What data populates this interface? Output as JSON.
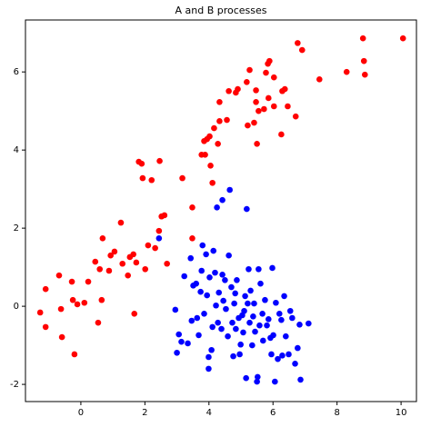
{
  "chart_data": {
    "type": "scatter",
    "title": "A and B processes",
    "xlim": [
      -1.73,
      10.48
    ],
    "ylim": [
      -2.44,
      7.33
    ],
    "xticks": [
      0,
      2,
      4,
      6,
      8,
      10
    ],
    "yticks": [
      -2,
      0,
      2,
      4,
      6
    ],
    "grid": false,
    "series": [
      {
        "color": "#ff0000",
        "x": [
          -1.27,
          -1.1,
          -1.1,
          -0.68,
          -0.59,
          -0.62,
          -0.25,
          -0.2,
          -0.28,
          -0.11,
          0.11,
          0.23,
          0.45,
          0.54,
          0.65,
          0.59,
          0.68,
          0.88,
          0.93,
          1.05,
          1.25,
          1.3,
          1.47,
          1.53,
          1.64,
          1.67,
          1.73,
          1.81,
          1.9,
          1.93,
          2.01,
          2.1,
          2.21,
          2.32,
          2.46,
          2.44,
          2.52,
          2.61,
          2.69,
          3.17,
          3.48,
          3.48,
          3.77,
          3.88,
          3.85,
          3.94,
          4.02,
          4.11,
          4.16,
          4.33,
          4.28,
          4.05,
          4.33,
          4.56,
          4.62,
          4.84,
          4.9,
          5.18,
          5.21,
          5.27,
          5.41,
          5.47,
          5.47,
          5.55,
          5.5,
          5.72,
          5.78,
          5.84,
          5.89,
          5.86,
          6.03,
          6.03,
          6.26,
          6.29,
          6.46,
          6.37,
          6.71,
          6.77,
          6.91,
          7.45,
          8.3,
          8.81,
          8.84,
          8.87,
          10.06
        ],
        "values": [
          -0.16,
          0.44,
          -0.53,
          0.79,
          -0.79,
          -0.07,
          0.16,
          -1.23,
          0.63,
          0.05,
          0.09,
          0.63,
          1.14,
          -0.42,
          0.16,
          0.95,
          1.74,
          0.91,
          1.3,
          1.4,
          2.14,
          1.09,
          0.79,
          1.26,
          1.33,
          -0.19,
          1.12,
          3.7,
          3.65,
          3.28,
          0.95,
          1.56,
          3.23,
          1.49,
          3.72,
          1.93,
          2.3,
          2.33,
          1.09,
          3.28,
          2.53,
          1.74,
          3.88,
          3.88,
          4.23,
          4.28,
          4.35,
          3.16,
          4.56,
          4.74,
          4.16,
          3.6,
          5.23,
          4.77,
          5.51,
          5.47,
          5.56,
          5.74,
          4.63,
          6.05,
          4.7,
          5.23,
          5.53,
          5.0,
          4.16,
          5.05,
          5.98,
          6.21,
          6.28,
          5.33,
          5.12,
          5.86,
          4.4,
          5.51,
          5.12,
          5.56,
          4.86,
          6.74,
          6.56,
          5.81,
          6.0,
          6.86,
          6.28,
          5.93,
          6.86
        ]
      },
      {
        "color": "#0000ff",
        "x": [
          2.44,
          2.95,
          3.0,
          3.06,
          3.14,
          3.23,
          3.34,
          3.43,
          3.46,
          3.51,
          3.6,
          3.63,
          3.68,
          3.74,
          3.77,
          3.8,
          3.85,
          3.91,
          3.94,
          3.99,
          3.99,
          4.02,
          4.08,
          4.11,
          4.14,
          4.19,
          4.22,
          4.25,
          4.28,
          4.31,
          4.39,
          4.42,
          4.42,
          4.45,
          4.5,
          4.53,
          4.59,
          4.62,
          4.65,
          4.7,
          4.73,
          4.76,
          4.79,
          4.82,
          4.84,
          4.87,
          4.93,
          4.96,
          4.99,
          5.04,
          5.07,
          5.1,
          5.18,
          5.13,
          5.16,
          5.21,
          5.24,
          5.27,
          5.3,
          5.35,
          5.38,
          5.41,
          5.44,
          5.5,
          5.52,
          5.55,
          5.58,
          5.61,
          5.67,
          5.69,
          5.75,
          5.81,
          5.86,
          5.92,
          5.95,
          5.98,
          6.01,
          6.06,
          6.09,
          6.15,
          6.2,
          6.26,
          6.29,
          6.35,
          6.4,
          6.49,
          6.54,
          6.6,
          6.69,
          6.77,
          6.86,
          6.83,
          7.11
        ],
        "values": [
          1.74,
          -0.09,
          -1.19,
          -0.72,
          -0.91,
          0.77,
          -0.95,
          1.23,
          -0.37,
          0.53,
          0.58,
          -0.3,
          -0.74,
          0.37,
          0.91,
          1.56,
          -0.19,
          1.33,
          0.28,
          -1.3,
          -1.6,
          0.74,
          -1.12,
          -0.53,
          1.42,
          0.86,
          0.02,
          2.53,
          -0.42,
          0.35,
          -0.58,
          0.81,
          2.72,
          0.14,
          0.67,
          -0.07,
          -0.77,
          1.3,
          2.98,
          0.49,
          -0.42,
          -1.28,
          0.07,
          0.33,
          -0.58,
          0.67,
          -0.3,
          -1.23,
          -0.98,
          -0.23,
          -0.67,
          -0.12,
          2.49,
          0.26,
          -1.84,
          0.07,
          0.95,
          -0.42,
          0.4,
          -1.0,
          -0.26,
          0.07,
          -0.65,
          -1.93,
          -1.81,
          0.95,
          -0.49,
          0.58,
          -0.19,
          -0.88,
          0.16,
          -0.49,
          -0.33,
          -0.81,
          -1.23,
          0.98,
          -0.74,
          -1.93,
          0.09,
          -1.35,
          -0.19,
          -0.35,
          -1.26,
          0.26,
          -0.77,
          -1.23,
          -0.12,
          -0.3,
          -1.47,
          -1.07,
          -1.88,
          -0.47,
          -0.44
        ]
      }
    ]
  }
}
